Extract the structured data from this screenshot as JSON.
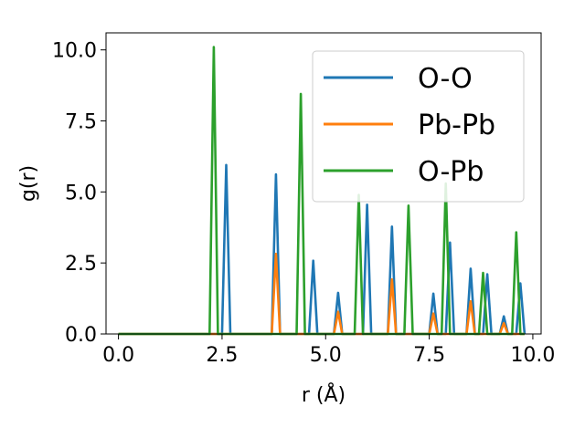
{
  "chart_data": {
    "type": "line",
    "xlabel": "r (Å)",
    "ylabel": "g(r)",
    "xlim": [
      -0.3,
      10.2
    ],
    "ylim": [
      0,
      10.6
    ],
    "xticks": [
      0.0,
      2.5,
      5.0,
      7.5,
      10.0
    ],
    "xtick_labels": [
      "0.0",
      "2.5",
      "5.0",
      "7.5",
      "10.0"
    ],
    "yticks": [
      0.0,
      2.5,
      5.0,
      7.5,
      10.0
    ],
    "ytick_labels": [
      "0.0",
      "2.5",
      "5.0",
      "7.5",
      "10.0"
    ],
    "grid": false,
    "legend_position": "top-right",
    "series": [
      {
        "name": "O-O",
        "color": "#1f77b4",
        "x": [
          0.0,
          2.5,
          2.6,
          2.7,
          3.7,
          3.8,
          3.9,
          4.6,
          4.7,
          4.8,
          5.2,
          5.3,
          5.4,
          5.9,
          6.0,
          6.1,
          6.5,
          6.6,
          6.7,
          7.5,
          7.6,
          7.7,
          7.9,
          8.0,
          8.1,
          8.4,
          8.5,
          8.6,
          8.8,
          8.9,
          9.0,
          9.2,
          9.3,
          9.4,
          9.6,
          9.7,
          9.8
        ],
        "y": [
          0,
          0,
          5.95,
          0,
          0,
          5.62,
          0,
          0,
          2.58,
          0,
          0,
          1.45,
          0,
          0,
          4.55,
          0,
          0,
          3.78,
          0,
          0,
          1.42,
          0,
          0,
          3.22,
          0,
          0,
          2.3,
          0,
          0,
          2.1,
          0,
          0,
          0.62,
          0,
          0,
          1.78,
          0
        ]
      },
      {
        "name": "Pb-Pb",
        "color": "#ff7f0e",
        "x": [
          0.0,
          3.7,
          3.8,
          3.9,
          5.2,
          5.3,
          5.4,
          6.5,
          6.6,
          6.7,
          7.5,
          7.6,
          7.7,
          8.4,
          8.5,
          8.6,
          9.2,
          9.3,
          9.4,
          9.8
        ],
        "y": [
          0,
          0,
          2.82,
          0,
          0,
          0.78,
          0,
          0,
          1.92,
          0,
          0,
          0.72,
          0,
          0,
          1.15,
          0,
          0,
          0.38,
          0,
          0
        ]
      },
      {
        "name": "O-Pb",
        "color": "#2ca02c",
        "x": [
          0.0,
          2.2,
          2.3,
          2.4,
          4.3,
          4.4,
          4.5,
          5.7,
          5.8,
          5.9,
          6.9,
          7.0,
          7.1,
          7.8,
          7.9,
          8.0,
          8.7,
          8.8,
          8.9,
          9.5,
          9.6,
          9.7,
          9.8
        ],
        "y": [
          0,
          0,
          10.1,
          0,
          0,
          8.45,
          0,
          0,
          4.9,
          0,
          0,
          4.52,
          0,
          0,
          5.3,
          0,
          0,
          2.15,
          0,
          0,
          3.58,
          0,
          0
        ]
      }
    ]
  }
}
